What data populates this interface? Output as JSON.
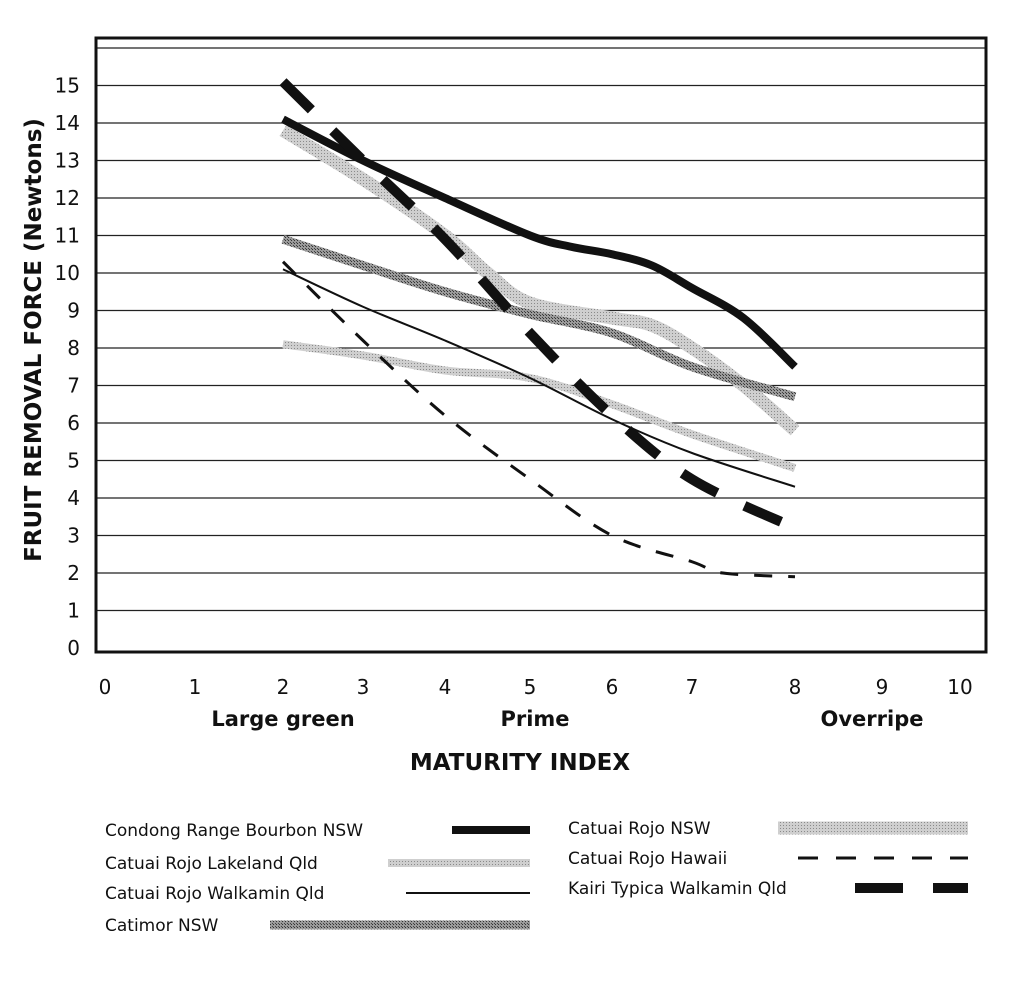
{
  "chart_data": {
    "type": "line",
    "title": "",
    "xlabel": "MATURITY INDEX",
    "ylabel": "FRUIT REMOVAL FORCE (Newtons)",
    "xlim": [
      0,
      10
    ],
    "ylim": [
      0,
      16
    ],
    "x_ticks": [
      "0",
      "1",
      "2",
      "3",
      "4",
      "5",
      "6",
      "7",
      "8",
      "9",
      "10"
    ],
    "y_ticks": [
      "0",
      "1",
      "2",
      "3",
      "4",
      "5",
      "6",
      "7",
      "8",
      "9",
      "10",
      "11",
      "12",
      "13",
      "14",
      "15"
    ],
    "x_category_labels": [
      {
        "label": "Large green",
        "x": 2
      },
      {
        "label": "Prime",
        "x": 5
      },
      {
        "label": "Overripe",
        "x": 9
      }
    ],
    "grid": "horizontal",
    "legend_position": "bottom",
    "series": [
      {
        "name": "Condong Range Bourbon NSW",
        "style": "solid-thick-black",
        "color": "#111111",
        "points": [
          [
            2,
            14.1
          ],
          [
            3,
            13.0
          ],
          [
            4,
            12.0
          ],
          [
            5,
            11.0
          ],
          [
            5.5,
            10.7
          ],
          [
            6,
            10.5
          ],
          [
            6.5,
            10.2
          ],
          [
            7,
            9.6
          ],
          [
            7.5,
            8.8
          ],
          [
            8,
            7.5
          ]
        ]
      },
      {
        "name": "Catuai Rojo Lakeland Qld",
        "style": "light-grey-medium",
        "color": "#b8b8b8",
        "points": [
          [
            2,
            8.1
          ],
          [
            3,
            7.8
          ],
          [
            4,
            7.4
          ],
          [
            5,
            7.2
          ],
          [
            6,
            6.5
          ],
          [
            7,
            5.7
          ],
          [
            8,
            4.8
          ]
        ]
      },
      {
        "name": "Catuai Rojo Walkamin Qld",
        "style": "solid-thin-black",
        "color": "#111111",
        "points": [
          [
            2,
            10.1
          ],
          [
            3,
            9.1
          ],
          [
            4,
            8.2
          ],
          [
            5,
            7.2
          ],
          [
            6,
            6.1
          ],
          [
            7,
            5.2
          ],
          [
            8,
            4.3
          ]
        ]
      },
      {
        "name": "Catimor NSW",
        "style": "dark-grey-thick",
        "color": "#808080",
        "points": [
          [
            2,
            10.9
          ],
          [
            3,
            10.2
          ],
          [
            4,
            9.5
          ],
          [
            5,
            8.9
          ],
          [
            6,
            8.4
          ],
          [
            7,
            7.5
          ],
          [
            8,
            6.7
          ]
        ]
      },
      {
        "name": "Catuai Rojo NSW",
        "style": "light-grey-thick",
        "color": "#c4c4c4",
        "points": [
          [
            2,
            13.8
          ],
          [
            3,
            12.5
          ],
          [
            4,
            11.0
          ],
          [
            4.5,
            10.0
          ],
          [
            5,
            9.2
          ],
          [
            6,
            8.8
          ],
          [
            6.5,
            8.6
          ],
          [
            7,
            8.0
          ],
          [
            7.5,
            7.0
          ],
          [
            8,
            5.8
          ]
        ]
      },
      {
        "name": "Catuai Rojo Hawaii",
        "style": "dashed-thin-black",
        "color": "#111111",
        "points": [
          [
            2,
            10.3
          ],
          [
            3,
            8.2
          ],
          [
            4,
            6.2
          ],
          [
            5,
            4.5
          ],
          [
            6,
            3.0
          ],
          [
            7,
            2.3
          ],
          [
            7.3,
            2.0
          ],
          [
            8,
            1.9
          ]
        ]
      },
      {
        "name": "Kairi Typica Walkamin Qld",
        "style": "dashed-thick-black",
        "color": "#111111",
        "points": [
          [
            2,
            15.1
          ],
          [
            3,
            13.0
          ],
          [
            4,
            10.9
          ],
          [
            5,
            8.4
          ],
          [
            6,
            6.2
          ],
          [
            7,
            4.5
          ],
          [
            8,
            3.2
          ]
        ]
      }
    ]
  }
}
